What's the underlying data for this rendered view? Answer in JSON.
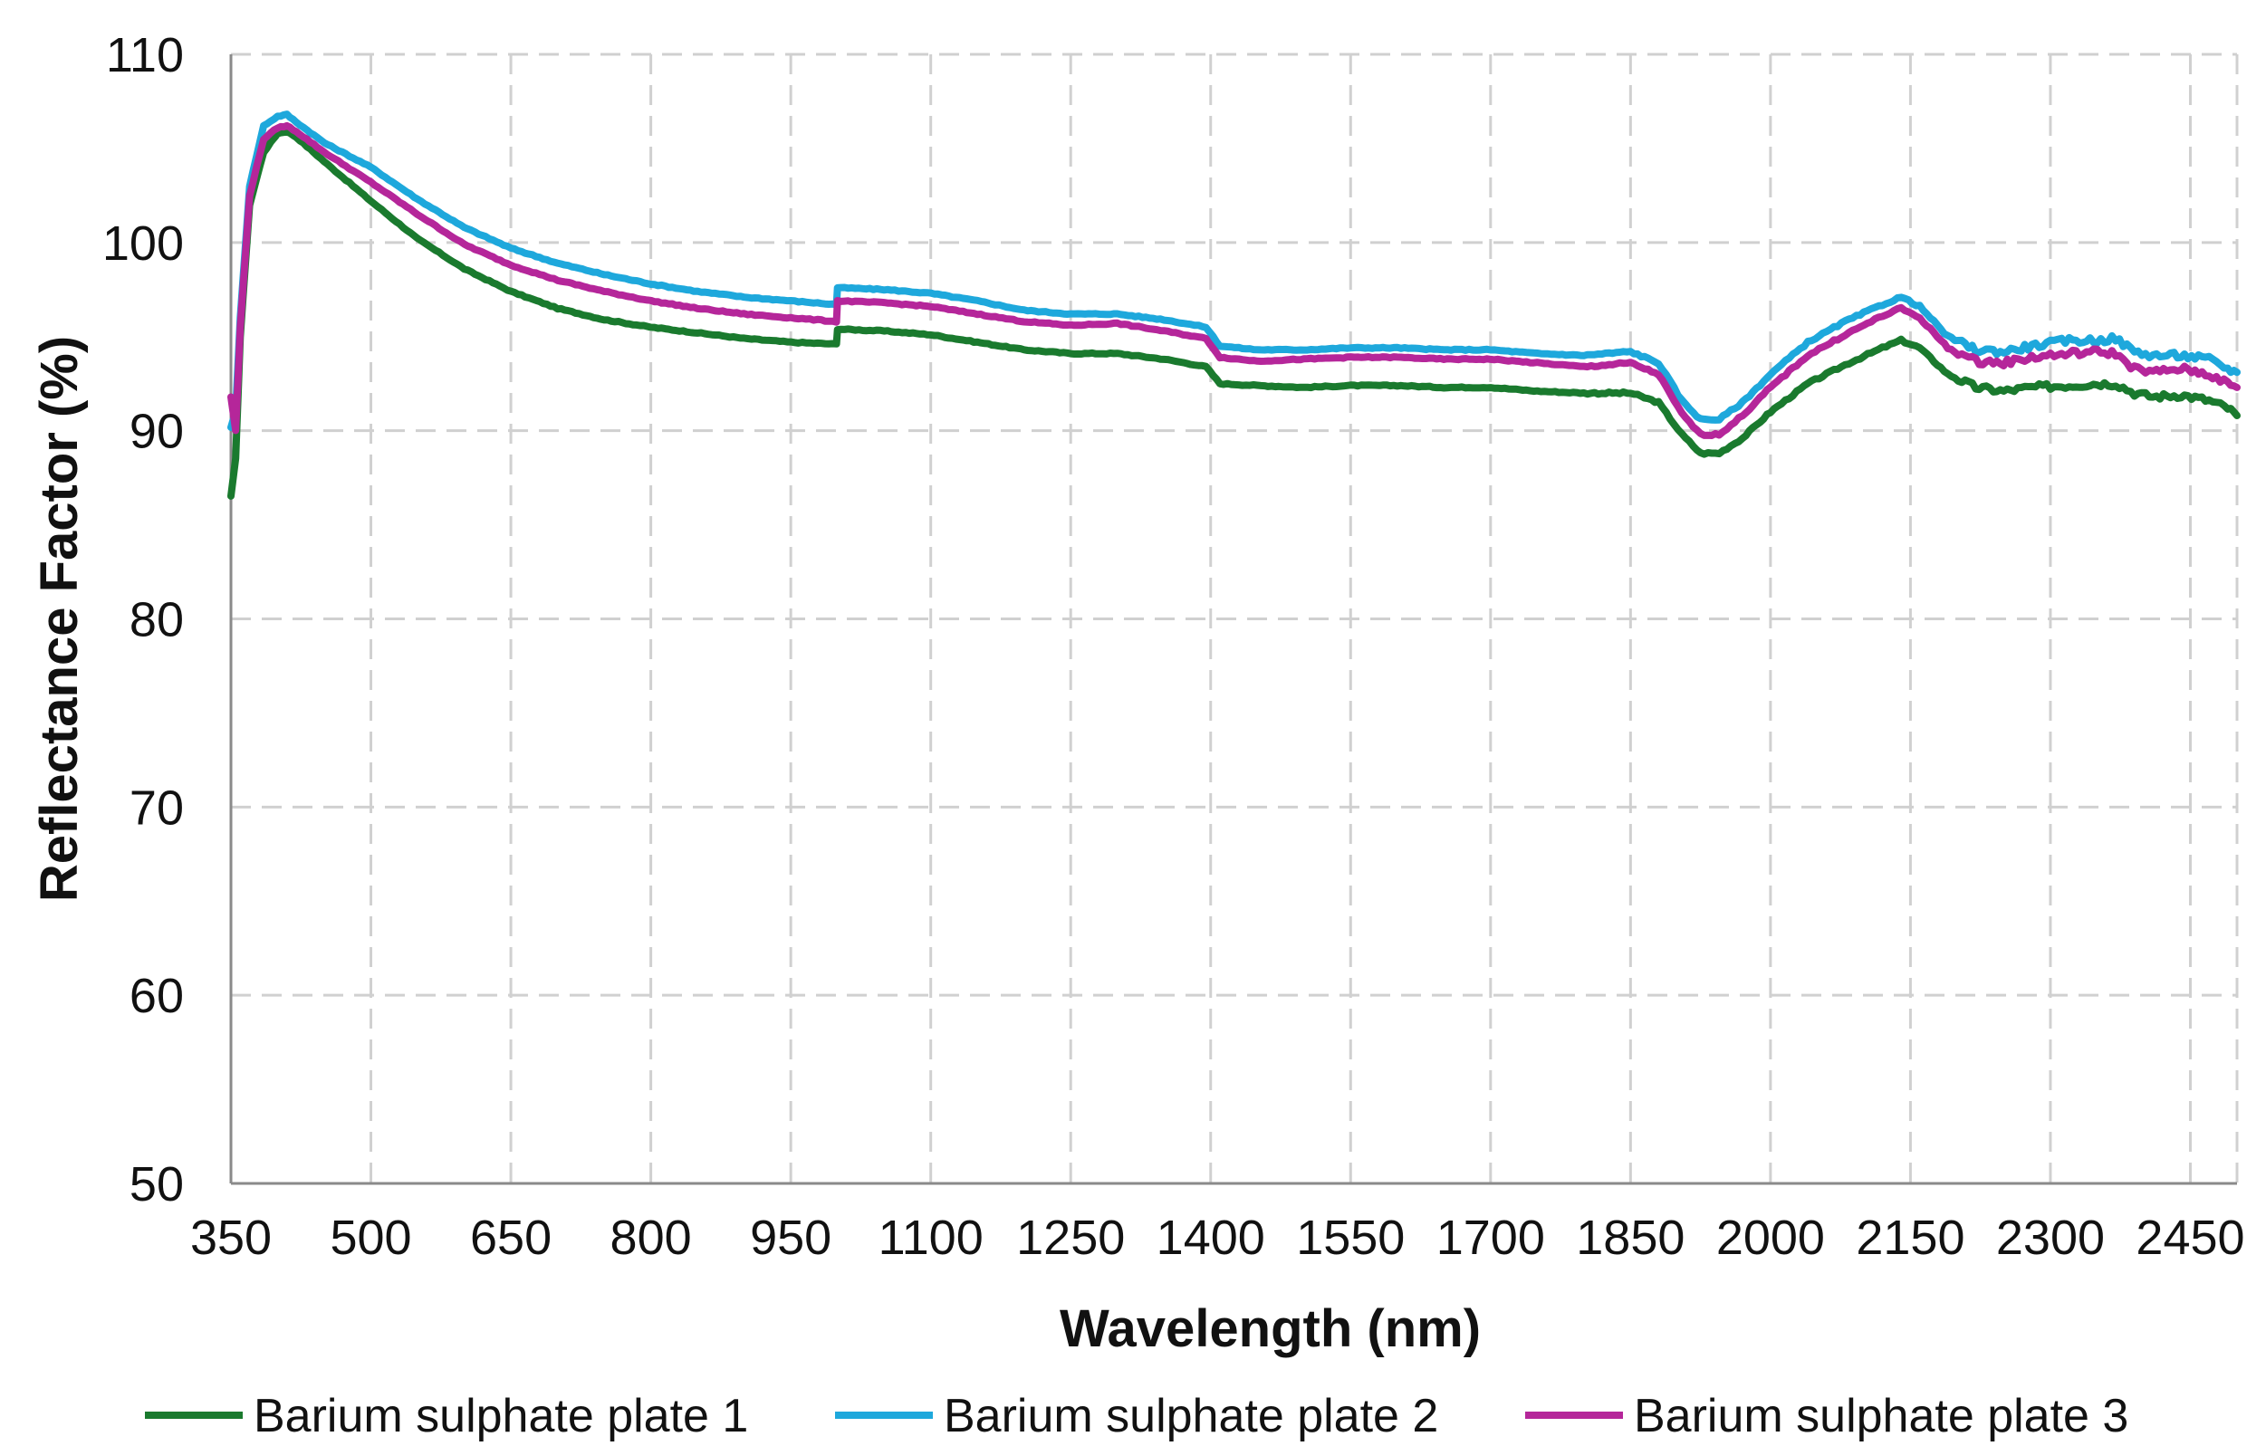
{
  "chart_data": {
    "type": "line",
    "title": "",
    "xlabel": "Wavelength (nm)",
    "ylabel": "Reflectance Factor (%)",
    "xlim": [
      350,
      2500
    ],
    "ylim": [
      50,
      110
    ],
    "x_ticks": [
      350,
      500,
      650,
      800,
      950,
      1100,
      1250,
      1400,
      1550,
      1700,
      1850,
      2000,
      2150,
      2300,
      2450
    ],
    "y_ticks": [
      50,
      60,
      70,
      80,
      90,
      100,
      110
    ],
    "x_tick_labels": [
      "350",
      "500",
      "650",
      "800",
      "950",
      "1100",
      "1250",
      "1400",
      "1550",
      "1700",
      "1850",
      "2000",
      "2150",
      "2300",
      "2450"
    ],
    "y_tick_labels": [
      "50",
      "60",
      "70",
      "80",
      "90",
      "100",
      "110"
    ],
    "grid": true,
    "legend_position": "bottom",
    "series": [
      {
        "name": "Barium sulphate plate 1",
        "color": "#1a7a2e",
        "points": [
          [
            350,
            86.5
          ],
          [
            355,
            88.5
          ],
          [
            360,
            95
          ],
          [
            370,
            102
          ],
          [
            385,
            104.8
          ],
          [
            400,
            105.8
          ],
          [
            410,
            105.9
          ],
          [
            420,
            105.6
          ],
          [
            450,
            104.3
          ],
          [
            500,
            102.2
          ],
          [
            550,
            100.2
          ],
          [
            600,
            98.6
          ],
          [
            650,
            97.4
          ],
          [
            700,
            96.5
          ],
          [
            750,
            95.9
          ],
          [
            800,
            95.5
          ],
          [
            850,
            95.2
          ],
          [
            900,
            94.9
          ],
          [
            950,
            94.7
          ],
          [
            999,
            94.6
          ],
          [
            1000,
            95.4
          ],
          [
            1050,
            95.3
          ],
          [
            1100,
            95.1
          ],
          [
            1150,
            94.7
          ],
          [
            1200,
            94.3
          ],
          [
            1250,
            94.1
          ],
          [
            1300,
            94.1
          ],
          [
            1350,
            93.8
          ],
          [
            1395,
            93.4
          ],
          [
            1410,
            92.5
          ],
          [
            1450,
            92.4
          ],
          [
            1500,
            92.3
          ],
          [
            1550,
            92.4
          ],
          [
            1600,
            92.4
          ],
          [
            1650,
            92.3
          ],
          [
            1700,
            92.3
          ],
          [
            1750,
            92.1
          ],
          [
            1800,
            92.0
          ],
          [
            1850,
            92.0
          ],
          [
            1880,
            91.5
          ],
          [
            1905,
            89.8
          ],
          [
            1925,
            88.8
          ],
          [
            1945,
            88.8
          ],
          [
            1970,
            89.6
          ],
          [
            2000,
            91.0
          ],
          [
            2040,
            92.5
          ],
          [
            2080,
            93.5
          ],
          [
            2120,
            94.4
          ],
          [
            2140,
            94.8
          ],
          [
            2160,
            94.4
          ],
          [
            2190,
            93.0
          ],
          [
            2220,
            92.3
          ],
          [
            2250,
            92.1
          ],
          [
            2280,
            92.3
          ],
          [
            2320,
            92.4
          ],
          [
            2350,
            92.5
          ],
          [
            2370,
            92.5
          ],
          [
            2390,
            92.0
          ],
          [
            2410,
            91.8
          ],
          [
            2440,
            91.9
          ],
          [
            2470,
            91.6
          ],
          [
            2490,
            91.2
          ],
          [
            2500,
            90.8
          ]
        ]
      },
      {
        "name": "Barium sulphate plate 2",
        "color": "#1ea8dc",
        "points": [
          [
            350,
            90.2
          ],
          [
            355,
            91
          ],
          [
            360,
            96
          ],
          [
            370,
            103
          ],
          [
            385,
            106.2
          ],
          [
            400,
            106.7
          ],
          [
            410,
            106.8
          ],
          [
            420,
            106.4
          ],
          [
            450,
            105.3
          ],
          [
            500,
            104.0
          ],
          [
            550,
            102.3
          ],
          [
            600,
            100.8
          ],
          [
            650,
            99.7
          ],
          [
            700,
            98.9
          ],
          [
            750,
            98.3
          ],
          [
            800,
            97.8
          ],
          [
            850,
            97.4
          ],
          [
            900,
            97.1
          ],
          [
            950,
            96.9
          ],
          [
            999,
            96.7
          ],
          [
            1000,
            97.6
          ],
          [
            1050,
            97.5
          ],
          [
            1100,
            97.3
          ],
          [
            1150,
            96.9
          ],
          [
            1200,
            96.4
          ],
          [
            1250,
            96.2
          ],
          [
            1300,
            96.2
          ],
          [
            1350,
            95.9
          ],
          [
            1395,
            95.5
          ],
          [
            1410,
            94.5
          ],
          [
            1450,
            94.3
          ],
          [
            1500,
            94.3
          ],
          [
            1550,
            94.4
          ],
          [
            1600,
            94.4
          ],
          [
            1650,
            94.3
          ],
          [
            1700,
            94.3
          ],
          [
            1750,
            94.1
          ],
          [
            1800,
            94.0
          ],
          [
            1850,
            94.2
          ],
          [
            1880,
            93.6
          ],
          [
            1905,
            91.6
          ],
          [
            1925,
            90.6
          ],
          [
            1945,
            90.6
          ],
          [
            1970,
            91.5
          ],
          [
            2000,
            93.0
          ],
          [
            2040,
            94.7
          ],
          [
            2080,
            95.8
          ],
          [
            2120,
            96.7
          ],
          [
            2140,
            97.1
          ],
          [
            2160,
            96.6
          ],
          [
            2190,
            95.0
          ],
          [
            2220,
            94.3
          ],
          [
            2250,
            94.2
          ],
          [
            2280,
            94.5
          ],
          [
            2320,
            94.8
          ],
          [
            2350,
            94.8
          ],
          [
            2370,
            94.9
          ],
          [
            2390,
            94.2
          ],
          [
            2410,
            94.0
          ],
          [
            2440,
            94.0
          ],
          [
            2470,
            93.8
          ],
          [
            2490,
            93.3
          ],
          [
            2500,
            93.1
          ]
        ]
      },
      {
        "name": "Barium sulphate plate 3",
        "color": "#b5269a",
        "points": [
          [
            350,
            91.8
          ],
          [
            355,
            90
          ],
          [
            360,
            95.5
          ],
          [
            370,
            102.5
          ],
          [
            385,
            105.5
          ],
          [
            400,
            106.1
          ],
          [
            410,
            106.2
          ],
          [
            420,
            105.9
          ],
          [
            450,
            104.8
          ],
          [
            500,
            103.2
          ],
          [
            550,
            101.5
          ],
          [
            600,
            99.9
          ],
          [
            650,
            98.8
          ],
          [
            700,
            98.0
          ],
          [
            750,
            97.4
          ],
          [
            800,
            96.9
          ],
          [
            850,
            96.5
          ],
          [
            900,
            96.2
          ],
          [
            950,
            96.0
          ],
          [
            999,
            95.8
          ],
          [
            1000,
            96.9
          ],
          [
            1050,
            96.8
          ],
          [
            1100,
            96.6
          ],
          [
            1150,
            96.2
          ],
          [
            1200,
            95.8
          ],
          [
            1250,
            95.6
          ],
          [
            1300,
            95.7
          ],
          [
            1350,
            95.3
          ],
          [
            1395,
            94.9
          ],
          [
            1410,
            93.9
          ],
          [
            1450,
            93.7
          ],
          [
            1500,
            93.8
          ],
          [
            1550,
            93.9
          ],
          [
            1600,
            93.9
          ],
          [
            1650,
            93.8
          ],
          [
            1700,
            93.8
          ],
          [
            1750,
            93.6
          ],
          [
            1800,
            93.4
          ],
          [
            1850,
            93.6
          ],
          [
            1880,
            93.0
          ],
          [
            1905,
            90.9
          ],
          [
            1925,
            89.8
          ],
          [
            1945,
            89.8
          ],
          [
            1970,
            90.8
          ],
          [
            2000,
            92.3
          ],
          [
            2040,
            94.0
          ],
          [
            2080,
            95.1
          ],
          [
            2120,
            96.1
          ],
          [
            2140,
            96.5
          ],
          [
            2160,
            96.0
          ],
          [
            2190,
            94.4
          ],
          [
            2220,
            93.7
          ],
          [
            2250,
            93.6
          ],
          [
            2280,
            93.9
          ],
          [
            2320,
            94.1
          ],
          [
            2350,
            94.2
          ],
          [
            2370,
            94.1
          ],
          [
            2390,
            93.3
          ],
          [
            2410,
            93.1
          ],
          [
            2440,
            93.3
          ],
          [
            2470,
            93.0
          ],
          [
            2490,
            92.5
          ],
          [
            2500,
            92.3
          ]
        ]
      }
    ]
  }
}
